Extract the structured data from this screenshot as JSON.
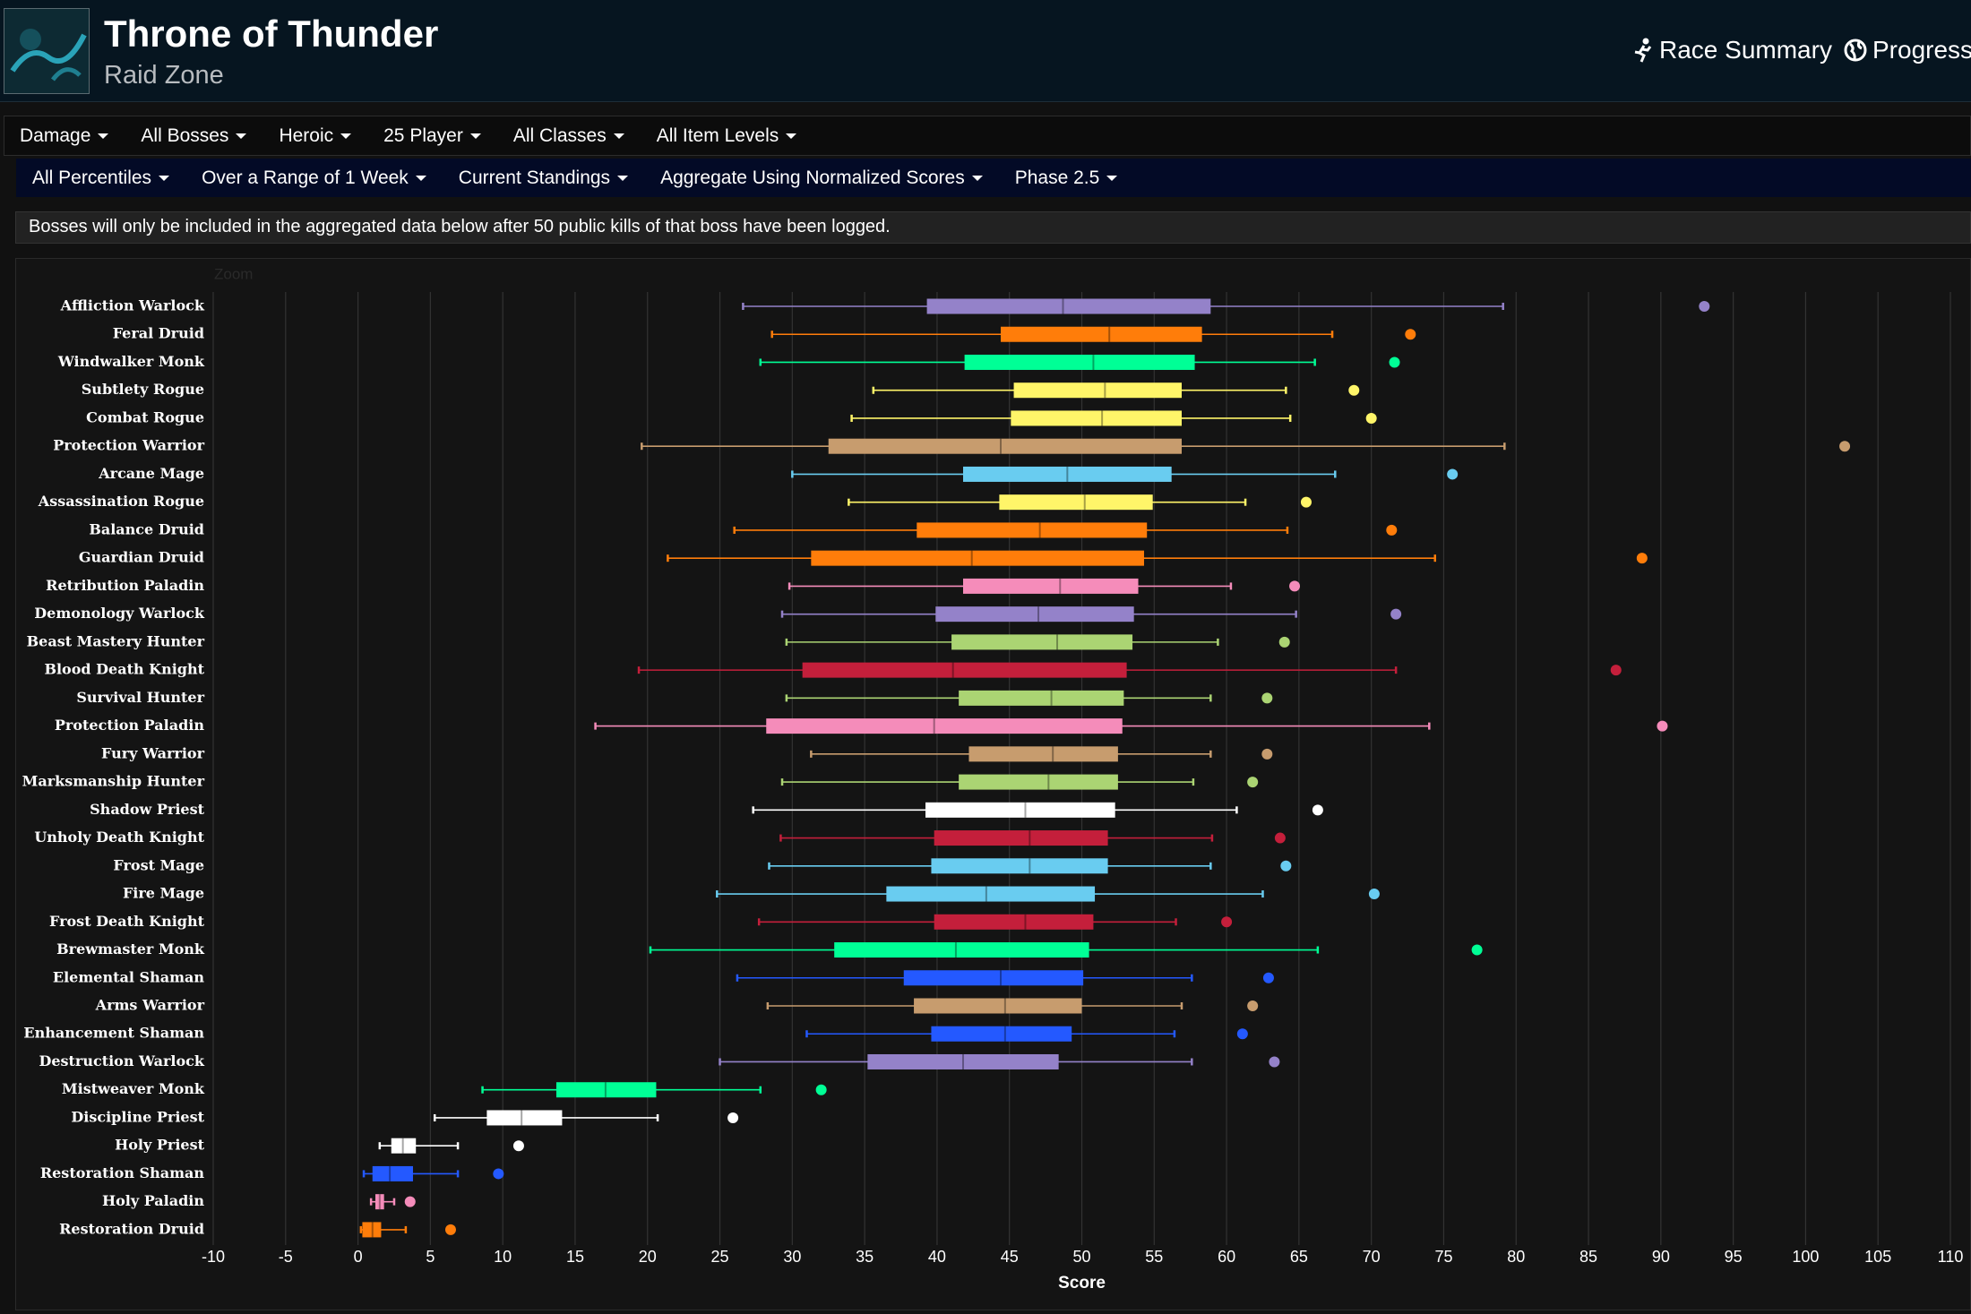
{
  "header": {
    "title": "Throne of Thunder",
    "subtitle": "Raid Zone",
    "links": [
      "Race Summary",
      "Progress"
    ]
  },
  "filters": {
    "row1": [
      "Damage",
      "All Bosses",
      "Heroic",
      "25 Player",
      "All Classes",
      "All Item Levels"
    ],
    "row2": [
      "All Percentiles",
      "Over a Range of 1 Week",
      "Current Standings",
      "Aggregate Using Normalized Scores",
      "Phase 2.5"
    ]
  },
  "notice": "Bosses will only be included in the aggregated data below after 50 public kills of that boss have been logged.",
  "chart_data": {
    "type": "boxplot",
    "zoom_label": "Zoom",
    "xlabel": "Score",
    "orientation": "horizontal",
    "grid": true,
    "categories": [
      "Affliction Warlock",
      "Feral Druid",
      "Windwalker Monk",
      "Subtlety Rogue",
      "Combat Rogue",
      "Protection Warrior",
      "Arcane Mage",
      "Assassination Rogue",
      "Balance Druid",
      "Guardian Druid",
      "Retribution Paladin",
      "Demonology Warlock",
      "Beast Mastery Hunter",
      "Blood Death Knight",
      "Survival Hunter",
      "Protection Paladin",
      "Fury Warrior",
      "Marksmanship Hunter",
      "Shadow Priest",
      "Unholy Death Knight",
      "Frost Mage",
      "Fire Mage",
      "Frost Death Knight",
      "Brewmaster Monk",
      "Elemental Shaman",
      "Arms Warrior",
      "Enhancement Shaman",
      "Destruction Warlock",
      "Mistweaver Monk",
      "Discipline Priest",
      "Holy Priest",
      "Restoration Shaman",
      "Holy Paladin",
      "Restoration Druid"
    ],
    "colors": [
      "#9482c9",
      "#ff7d0a",
      "#00ff96",
      "#fff569",
      "#fff569",
      "#c79c6e",
      "#69ccf0",
      "#fff569",
      "#ff7d0a",
      "#ff7d0a",
      "#f58cba",
      "#9482c9",
      "#abd473",
      "#c41f3b",
      "#abd473",
      "#f58cba",
      "#c79c6e",
      "#abd473",
      "#ffffff",
      "#c41f3b",
      "#69ccf0",
      "#69ccf0",
      "#c41f3b",
      "#00ff96",
      "#2459ff",
      "#c79c6e",
      "#2459ff",
      "#9482c9",
      "#00ff96",
      "#ffffff",
      "#ffffff",
      "#2459ff",
      "#f58cba",
      "#ff7d0a"
    ],
    "low": [
      26.6,
      28.6,
      27.8,
      35.6,
      34.1,
      19.6,
      30.0,
      33.9,
      26.0,
      21.4,
      29.8,
      29.3,
      29.6,
      19.4,
      29.6,
      16.4,
      31.3,
      29.3,
      27.3,
      29.2,
      28.4,
      24.8,
      27.7,
      20.2,
      26.2,
      28.3,
      31.0,
      25.0,
      8.6,
      5.3,
      1.5,
      0.4,
      0.9,
      0.2
    ],
    "q1": [
      39.3,
      44.4,
      41.9,
      45.3,
      45.1,
      32.5,
      41.8,
      44.3,
      38.6,
      31.3,
      41.8,
      39.9,
      41.0,
      30.7,
      41.5,
      28.2,
      42.2,
      41.5,
      39.2,
      39.8,
      39.6,
      36.5,
      39.8,
      32.9,
      37.7,
      38.4,
      39.6,
      35.2,
      13.7,
      8.9,
      2.3,
      1.0,
      1.2,
      0.3
    ],
    "median": [
      48.7,
      51.9,
      50.8,
      51.6,
      51.4,
      44.4,
      49.0,
      50.2,
      47.1,
      42.4,
      48.5,
      47.0,
      48.3,
      41.1,
      47.9,
      39.8,
      48.0,
      47.7,
      46.1,
      46.4,
      46.4,
      43.4,
      46.1,
      41.3,
      44.4,
      44.7,
      44.7,
      41.8,
      17.1,
      11.3,
      3.1,
      2.2,
      1.5,
      1.0
    ],
    "q3": [
      58.9,
      58.3,
      57.8,
      56.9,
      56.9,
      56.9,
      56.2,
      54.9,
      54.5,
      54.3,
      53.9,
      53.6,
      53.5,
      53.1,
      52.9,
      52.8,
      52.5,
      52.5,
      52.3,
      51.8,
      51.8,
      50.9,
      50.8,
      50.5,
      50.1,
      50.0,
      49.3,
      48.4,
      20.6,
      14.1,
      4.0,
      3.8,
      1.8,
      1.6
    ],
    "high": [
      79.1,
      67.3,
      66.1,
      64.1,
      64.4,
      79.2,
      67.5,
      61.3,
      64.2,
      74.4,
      60.3,
      64.8,
      59.4,
      71.7,
      58.9,
      74.0,
      58.9,
      57.7,
      60.7,
      59.0,
      58.9,
      62.5,
      56.5,
      66.3,
      57.6,
      56.9,
      56.4,
      57.6,
      27.8,
      20.7,
      6.9,
      6.9,
      2.5,
      3.3
    ],
    "points": [
      93.0,
      72.7,
      71.6,
      68.8,
      70.0,
      102.7,
      75.6,
      65.5,
      71.4,
      88.7,
      64.7,
      71.7,
      64.0,
      86.9,
      62.8,
      90.1,
      62.8,
      61.8,
      66.3,
      63.7,
      64.1,
      70.2,
      60.0,
      77.3,
      62.9,
      61.8,
      61.1,
      63.3,
      32.0,
      25.9,
      11.1,
      9.7,
      3.6,
      6.4
    ],
    "xlim": [
      -10,
      110
    ],
    "xticks": [
      -10,
      -5,
      0,
      5,
      10,
      15,
      20,
      25,
      30,
      35,
      40,
      45,
      50,
      55,
      60,
      65,
      70,
      75,
      80,
      85,
      90,
      95,
      100,
      105,
      110
    ]
  }
}
